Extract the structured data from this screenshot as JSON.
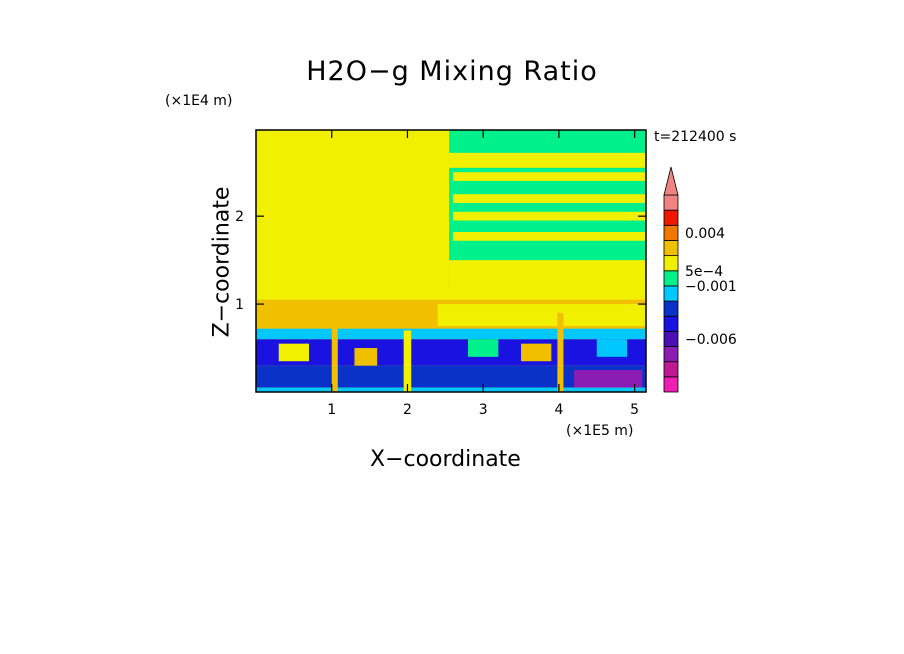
{
  "chart_data": {
    "type": "heatmap",
    "title": "H2O−g Mixing Ratio",
    "xlabel": "X−coordinate",
    "ylabel": "Z−coordinate",
    "x_scale_label": "(×1E5 m)",
    "y_scale_label": "(×1E4 m)",
    "time_label": "t=212400 s",
    "xlim": [
      0,
      5.15
    ],
    "ylim": [
      0,
      2.98
    ],
    "x_ticks": [
      1,
      2,
      3,
      4,
      5
    ],
    "x_tick_labels": [
      "1",
      "2",
      "3",
      "4",
      "5"
    ],
    "y_ticks": [
      1,
      2
    ],
    "y_tick_labels": [
      "1",
      "2"
    ],
    "colorbar": {
      "levels_low_to_high": [
        "#ee1eb4",
        "#c01890",
        "#8a1cb4",
        "#4a10b4",
        "#1a12e0",
        "#0a32c8",
        "#00c8ff",
        "#00f08c",
        "#f0f000",
        "#f0c000",
        "#f07800",
        "#f01800",
        "#f08282"
      ],
      "extend_top_color": "#f08282",
      "tick_labels": [
        "0.004",
        "5e−4",
        "−0.001",
        "−0.006"
      ],
      "tick_levels": [
        10.5,
        8,
        7,
        3.5
      ]
    },
    "regions": [
      {
        "x": [
          0,
          5.15
        ],
        "z": [
          0,
          2.98
        ],
        "color": "#f0f000"
      },
      {
        "x": [
          2.55,
          5.15
        ],
        "z": [
          1.2,
          2.98
        ],
        "color": "#00f08c"
      },
      {
        "x": [
          2.55,
          5.15
        ],
        "z": [
          2.55,
          2.72
        ],
        "color": "#f0f000"
      },
      {
        "x": [
          2.6,
          5.15
        ],
        "z": [
          2.4,
          2.5
        ],
        "color": "#f0f000"
      },
      {
        "x": [
          2.6,
          5.15
        ],
        "z": [
          2.15,
          2.25
        ],
        "color": "#f0f000"
      },
      {
        "x": [
          2.6,
          5.15
        ],
        "z": [
          1.95,
          2.05
        ],
        "color": "#f0f000"
      },
      {
        "x": [
          2.6,
          5.15
        ],
        "z": [
          1.72,
          1.82
        ],
        "color": "#f0f000"
      },
      {
        "x": [
          2.55,
          5.15
        ],
        "z": [
          1.2,
          1.5
        ],
        "color": "#f0f000"
      },
      {
        "x": [
          0,
          5.15
        ],
        "z": [
          0.7,
          1.05
        ],
        "color": "#f0c000"
      },
      {
        "x": [
          2.4,
          5.15
        ],
        "z": [
          0.75,
          1.0
        ],
        "color": "#f0f000"
      },
      {
        "x": [
          0,
          5.15
        ],
        "z": [
          0.6,
          0.72
        ],
        "color": "#00c8ff"
      },
      {
        "x": [
          0,
          5.15
        ],
        "z": [
          0.3,
          0.6
        ],
        "color": "#1a12e0"
      },
      {
        "x": [
          0,
          5.15
        ],
        "z": [
          0.05,
          0.3
        ],
        "color": "#0a32c8"
      },
      {
        "x": [
          4.2,
          5.1
        ],
        "z": [
          0.05,
          0.25
        ],
        "color": "#8a1cb4"
      },
      {
        "x": [
          0,
          5.15
        ],
        "z": [
          0,
          0.05
        ],
        "color": "#00c8ff"
      },
      {
        "x": [
          0.3,
          0.7
        ],
        "z": [
          0.35,
          0.55
        ],
        "color": "#f0f000"
      },
      {
        "x": [
          1.3,
          1.6
        ],
        "z": [
          0.3,
          0.5
        ],
        "color": "#f0c000"
      },
      {
        "x": [
          2.8,
          3.2
        ],
        "z": [
          0.4,
          0.6
        ],
        "color": "#00f08c"
      },
      {
        "x": [
          3.5,
          3.9
        ],
        "z": [
          0.35,
          0.55
        ],
        "color": "#f0c000"
      },
      {
        "x": [
          4.5,
          4.9
        ],
        "z": [
          0.4,
          0.6
        ],
        "color": "#00c8ff"
      },
      {
        "x": [
          1.0,
          1.08
        ],
        "z": [
          0,
          0.8
        ],
        "color": "#f0c000"
      },
      {
        "x": [
          3.98,
          4.06
        ],
        "z": [
          0,
          0.9
        ],
        "color": "#f0c000"
      },
      {
        "x": [
          1.95,
          2.05
        ],
        "z": [
          0,
          0.7
        ],
        "color": "#f0f000"
      }
    ]
  }
}
